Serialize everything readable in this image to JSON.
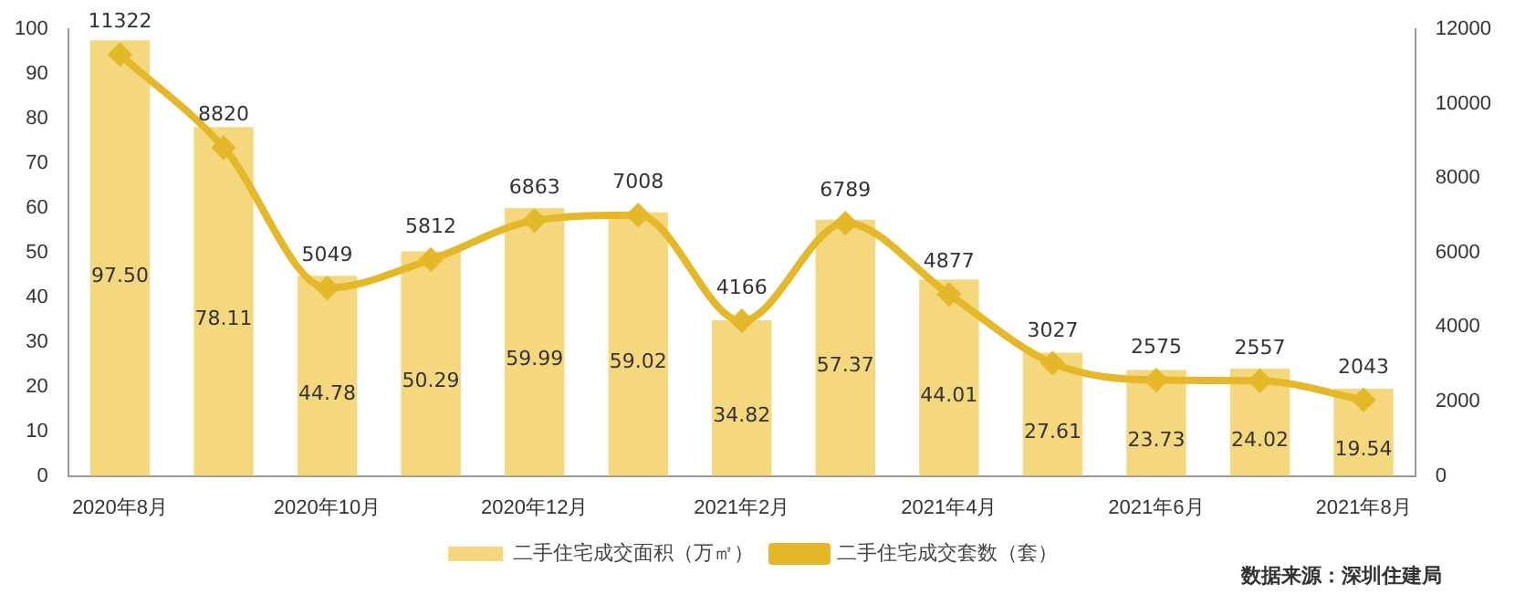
{
  "chart_data": {
    "type": "bar",
    "categories": [
      "2020年8月",
      null,
      "2020年10月",
      null,
      "2020年12月",
      null,
      "2021年2月",
      null,
      "2021年4月",
      null,
      "2021年6月",
      null,
      "2021年8月"
    ],
    "series": [
      {
        "name": "二手住宅成交面积（万㎡）",
        "color": "#f5d77e",
        "values": [
          97.5,
          78.11,
          44.78,
          50.29,
          59.99,
          59.02,
          34.82,
          57.37,
          44.01,
          27.61,
          23.73,
          24.02,
          19.54
        ],
        "value_labels": [
          "97.50",
          "78.11",
          "44.78",
          "50.29",
          "59.99",
          "59.02",
          "34.82",
          "57.37",
          "44.01",
          "27.61",
          "23.73",
          "24.02",
          "19.54"
        ]
      },
      {
        "name": "二手住宅成交套数（套）",
        "type": "line",
        "axis": "y2",
        "color": "#e5b82a",
        "values": [
          11322,
          8820,
          5049,
          5812,
          6863,
          7008,
          4166,
          6789,
          4877,
          3027,
          2575,
          2557,
          2043
        ],
        "value_labels": [
          "11322",
          "8820",
          "5049",
          "5812",
          "6863",
          "7008",
          "4166",
          "6789",
          "4877",
          "3027",
          "2575",
          "2557",
          "2043"
        ]
      }
    ],
    "ylim": [
      0,
      100
    ],
    "yticks": [
      0,
      10,
      20,
      30,
      40,
      50,
      60,
      70,
      80,
      90,
      100
    ],
    "y2lim": [
      0,
      12000
    ],
    "y2ticks": [
      0,
      2000,
      4000,
      6000,
      8000,
      10000,
      12000
    ],
    "grid": false,
    "legend": "bottom",
    "marker": "diamond",
    "line_style": "solid",
    "annotations": [
      "数据来源：深圳住建局"
    ]
  }
}
